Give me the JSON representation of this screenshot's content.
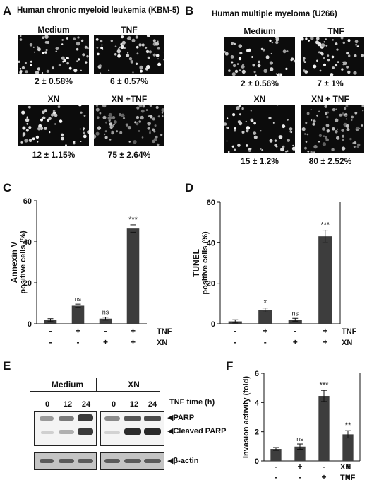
{
  "panels": {
    "A": {
      "label": "A",
      "title": "Human chronic myeloid leukemia (KBM-5)",
      "images": [
        {
          "title": "Medium",
          "caption": "2 ± 0.58%"
        },
        {
          "title": "TNF",
          "caption": "6 ± 0.57%"
        },
        {
          "title": "XN",
          "caption": "12 ± 1.15%"
        },
        {
          "title": "XN +TNF",
          "caption": "75 ± 2.64%"
        }
      ]
    },
    "B": {
      "label": "B",
      "title": "Human  multiple myeloma (U266)",
      "images": [
        {
          "title": "Medium",
          "caption": "2 ± 0.56%"
        },
        {
          "title": "TNF",
          "caption": "7 ± 1%"
        },
        {
          "title": "XN",
          "caption": "15 ± 1.2%"
        },
        {
          "title": "XN + TNF",
          "caption": "80 ±  2.52%"
        }
      ]
    },
    "C": {
      "label": "C"
    },
    "D": {
      "label": "D"
    },
    "E": {
      "label": "E",
      "group_labels": [
        "Medium",
        "XN"
      ],
      "lane_labels": [
        "0",
        "12",
        "24",
        "0",
        "12",
        "24"
      ],
      "time_label": "TNF time (h)",
      "bands": [
        "PARP",
        "Cleaved PARP",
        "β-actin"
      ]
    },
    "F": {
      "label": "F"
    }
  },
  "chart_data": [
    {
      "id": "C",
      "type": "bar",
      "ylabel_line1": "Annexin V",
      "ylabel_line2": "positive cells (%)",
      "ylim": [
        0,
        60
      ],
      "yticks": [
        0,
        20,
        40,
        60
      ],
      "values": [
        1.8,
        8.8,
        2.5,
        46.5
      ],
      "errors": [
        0.7,
        0.8,
        0.7,
        1.8
      ],
      "significance": [
        "",
        "ns",
        "ns",
        "***"
      ],
      "treatment_rows": [
        {
          "name": "TNF",
          "signs": [
            "-",
            "+",
            "-",
            "+"
          ]
        },
        {
          "name": "XN",
          "signs": [
            "-",
            "-",
            "+",
            "+"
          ]
        }
      ],
      "color": "#3d3d3d"
    },
    {
      "id": "D",
      "type": "bar",
      "ylabel_line1": "TUNEL",
      "ylabel_line2": "positive cells (%)",
      "ylim": [
        0,
        60
      ],
      "yticks": [
        0,
        20,
        40,
        60
      ],
      "values": [
        1.2,
        6.8,
        2.0,
        43.2
      ],
      "errors": [
        0.8,
        1.0,
        0.7,
        3.0
      ],
      "significance": [
        "",
        "*",
        "ns",
        "***"
      ],
      "treatment_rows": [
        {
          "name": "TNF",
          "signs": [
            "-",
            "+",
            "-",
            "+"
          ]
        },
        {
          "name": "XN",
          "signs": [
            "-",
            "-",
            "+",
            "+"
          ]
        }
      ],
      "color": "#3d3d3d"
    },
    {
      "id": "F",
      "type": "bar",
      "ylabel_line1": "Invasion activity (fold)",
      "ylabel_line2": "",
      "ylim": [
        0,
        6
      ],
      "yticks": [
        0,
        2,
        4,
        6
      ],
      "values": [
        0.82,
        0.98,
        4.45,
        1.82
      ],
      "errors": [
        0.1,
        0.18,
        0.38,
        0.25
      ],
      "significance": [
        "",
        "ns",
        "***",
        "**"
      ],
      "treatment_rows": [
        {
          "name": "XN",
          "signs": [
            "-",
            "+",
            "-",
            "+"
          ]
        },
        {
          "name": "TNF",
          "signs": [
            "-",
            "-",
            "+",
            "+"
          ]
        }
      ],
      "color": "#3d3d3d"
    }
  ]
}
